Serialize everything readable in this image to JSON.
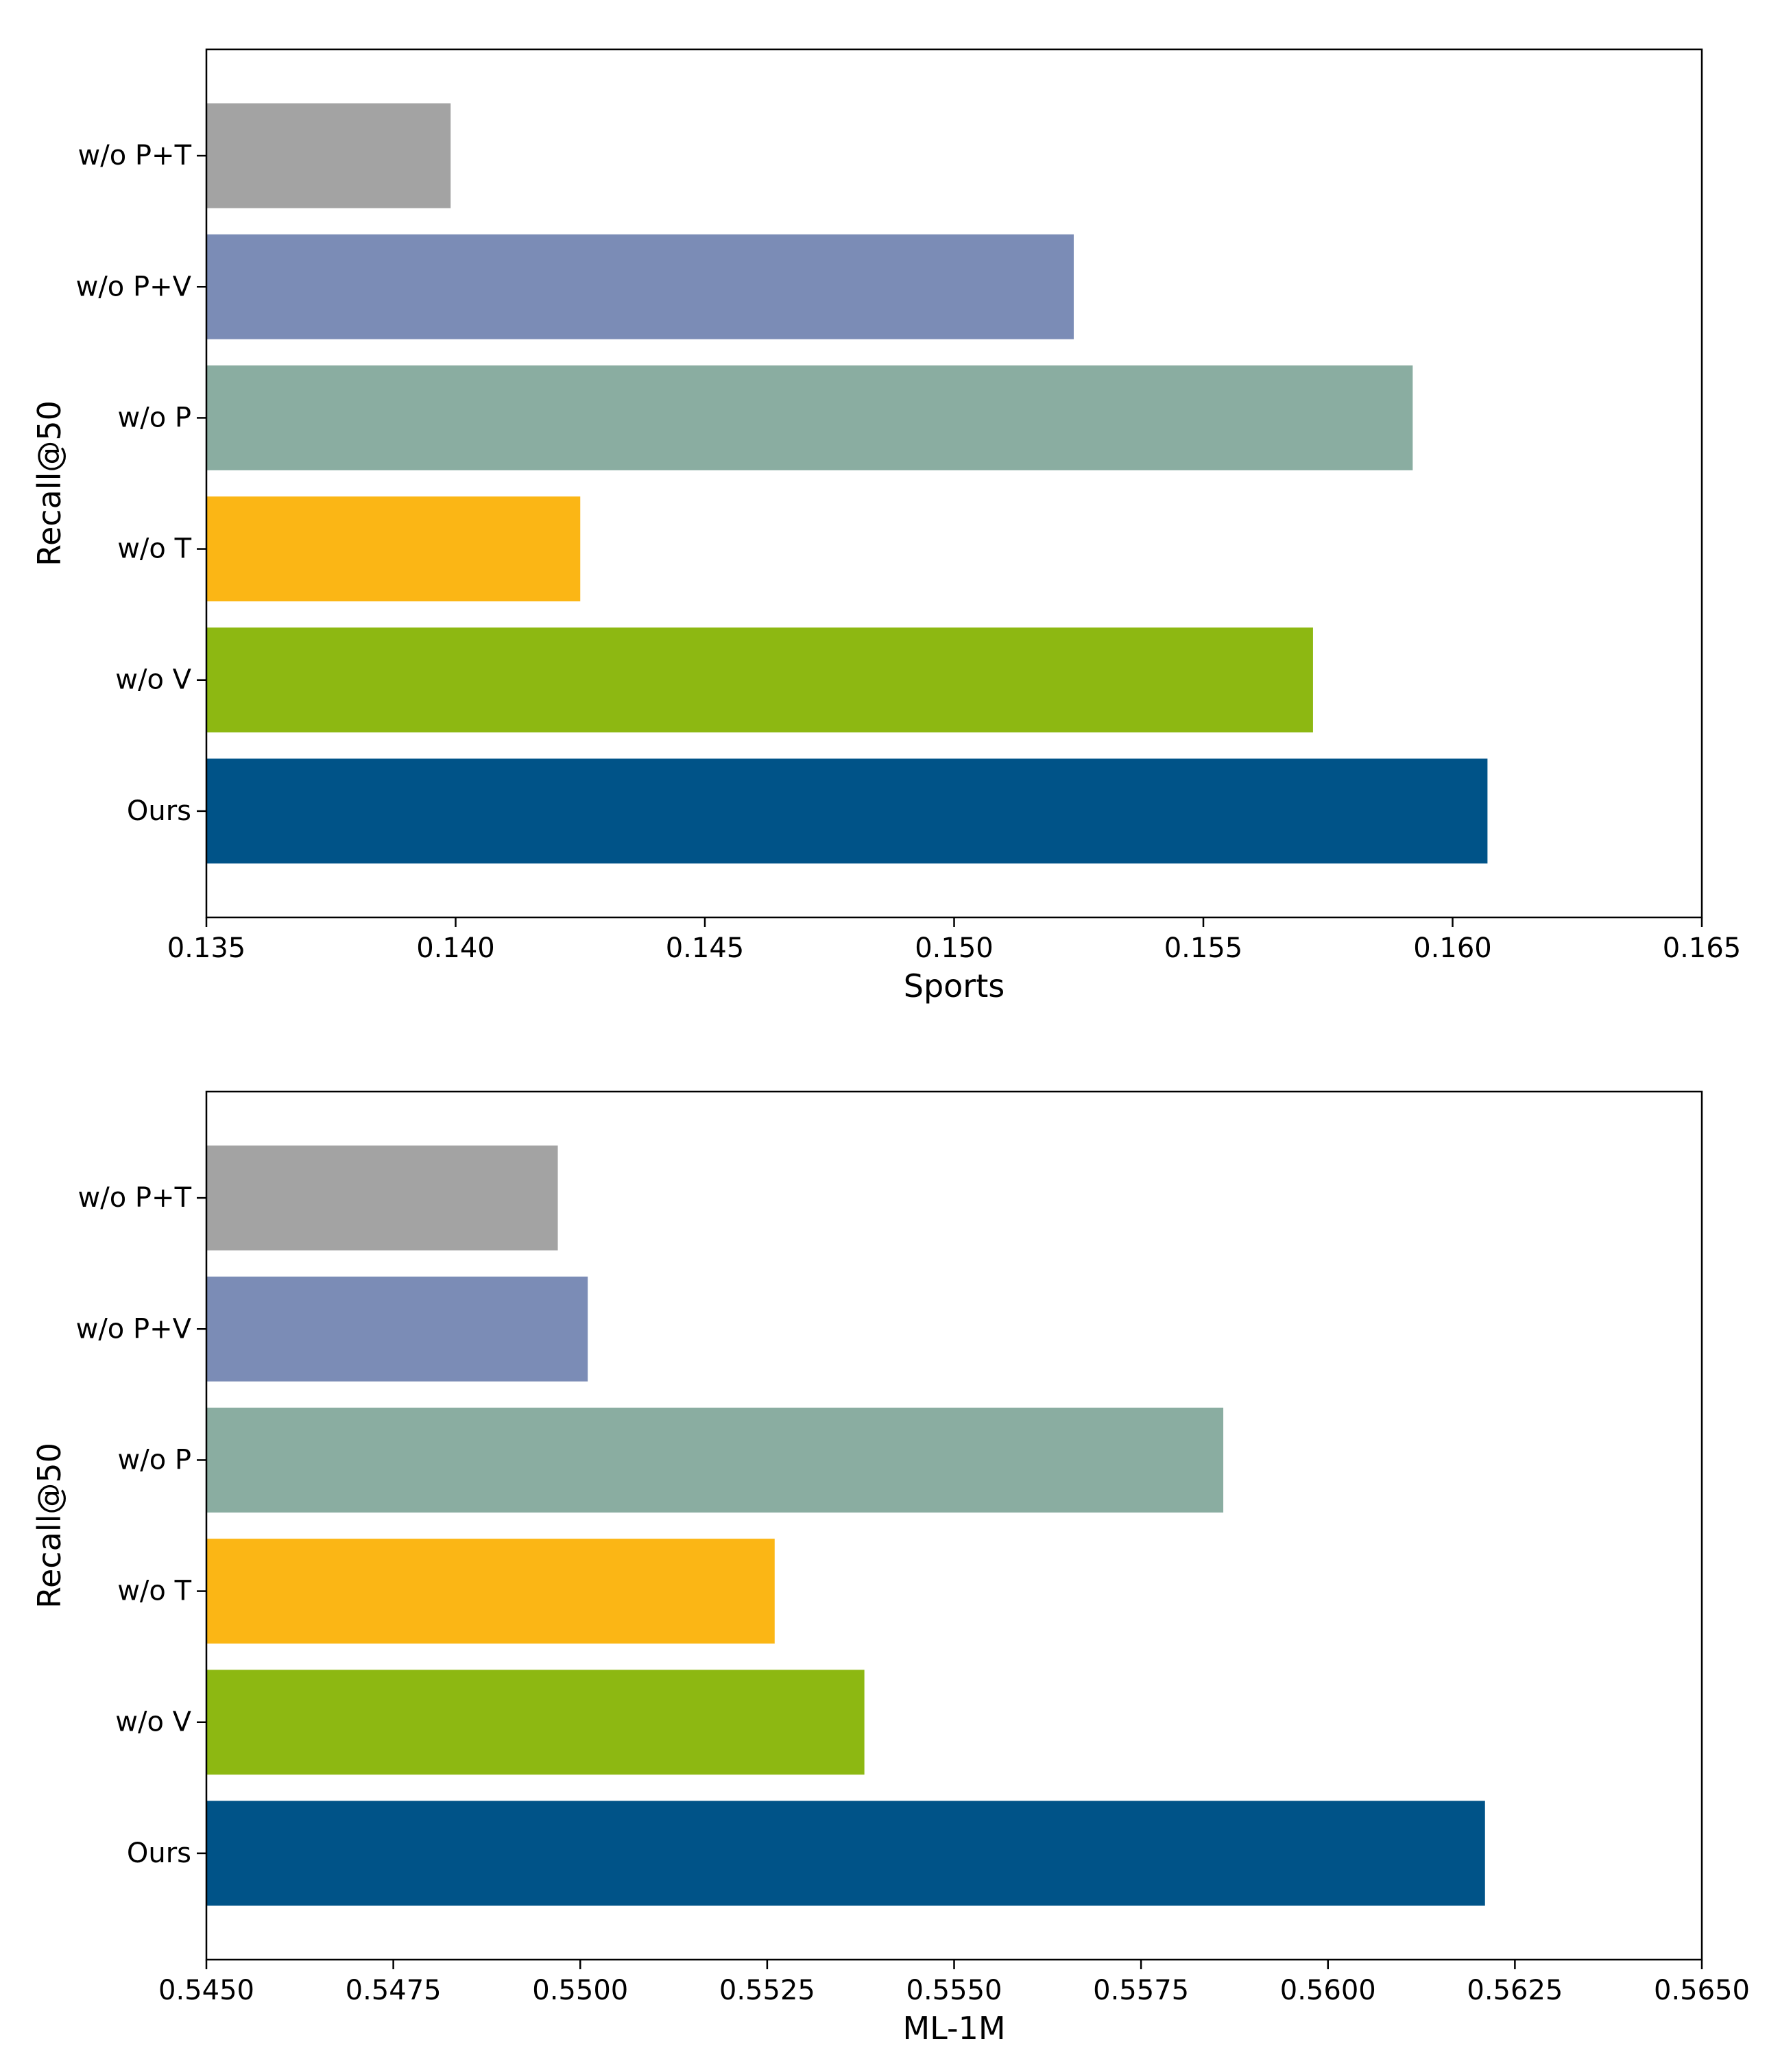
{
  "colors": {
    "w/o P+T": "#a3a3a3",
    "w/o P+V": "#7b8cb6",
    "w/o P": "#8aada1",
    "w/o T": "#fbb615",
    "w/o V": "#8db812",
    "Ours": "#005388"
  },
  "chart_data": [
    {
      "type": "bar",
      "orientation": "horizontal",
      "title": "",
      "xlabel": "Sports",
      "ylabel": "Recall@50",
      "xlim": [
        0.135,
        0.165
      ],
      "xticks": [
        0.135,
        0.14,
        0.145,
        0.15,
        0.155,
        0.16,
        0.165
      ],
      "xtick_labels": [
        "0.135",
        "0.140",
        "0.145",
        "0.150",
        "0.155",
        "0.160",
        "0.165"
      ],
      "categories": [
        "w/o P+T",
        "w/o P+V",
        "w/o P",
        "w/o T",
        "w/o V",
        "Ours"
      ],
      "values": [
        0.1399,
        0.1524,
        0.1592,
        0.1425,
        0.1572,
        0.1607
      ],
      "grid": false
    },
    {
      "type": "bar",
      "orientation": "horizontal",
      "title": "",
      "xlabel": "ML-1M",
      "ylabel": "Recall@50",
      "xlim": [
        0.545,
        0.565
      ],
      "xticks": [
        0.545,
        0.5475,
        0.55,
        0.5525,
        0.555,
        0.5575,
        0.56,
        0.5625,
        0.565
      ],
      "xtick_labels": [
        "0.5450",
        "0.5475",
        "0.5500",
        "0.5525",
        "0.5550",
        "0.5575",
        "0.5600",
        "0.5625",
        "0.5650"
      ],
      "categories": [
        "w/o P+T",
        "w/o P+V",
        "w/o P",
        "w/o T",
        "w/o V",
        "Ours"
      ],
      "values": [
        0.5497,
        0.5501,
        0.5586,
        0.5526,
        0.5538,
        0.5621
      ],
      "grid": false
    }
  ]
}
